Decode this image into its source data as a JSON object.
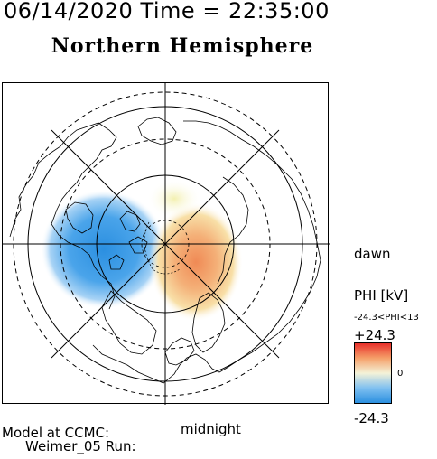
{
  "header": {
    "timestamp": "06/14/2020 Time = 22:35:00",
    "title": "Northern Hemisphere"
  },
  "map": {
    "projection": "polar-stereographic",
    "hemisphere": "north",
    "orientation": {
      "right": "dawn",
      "bottom": "midnight"
    },
    "latitude_circles": [
      "solid",
      "dashed",
      "solid",
      "dashed"
    ],
    "meridian_lines": 4,
    "features": [
      "coastlines",
      "potential-contours"
    ]
  },
  "labels": {
    "dawn": "dawn",
    "midnight": "midnight",
    "model_line1": "Model at CCMC:",
    "model_line2": "Weimer_05 Run:"
  },
  "colorbar": {
    "title": "PHI [kV]",
    "range_text": "-24.3<PHI<13",
    "max_label": "+24.3",
    "mid_label": "0",
    "min_label": "-24.3",
    "colors": {
      "max": "#e8302a",
      "upper": "#f5a06a",
      "mid": "#f4f2d8",
      "lower": "#7fc0f0",
      "min": "#2b8fe0"
    }
  }
}
